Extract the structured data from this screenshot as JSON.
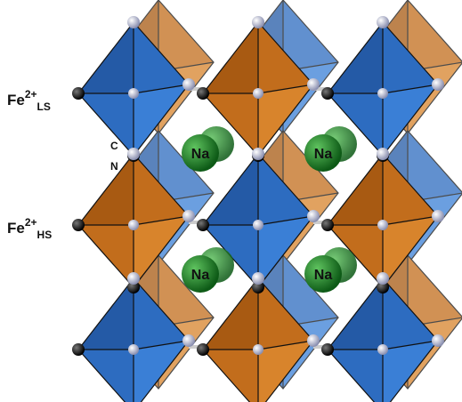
{
  "labels": {
    "fe_ls": {
      "element": "Fe",
      "charge": "2+",
      "spin": "LS"
    },
    "fe_hs": {
      "element": "Fe",
      "charge": "2+",
      "spin": "HS"
    },
    "carbon": "C",
    "nitrogen": "N"
  },
  "sodium": [
    "Na",
    "Na",
    "Na",
    "Na"
  ]
}
